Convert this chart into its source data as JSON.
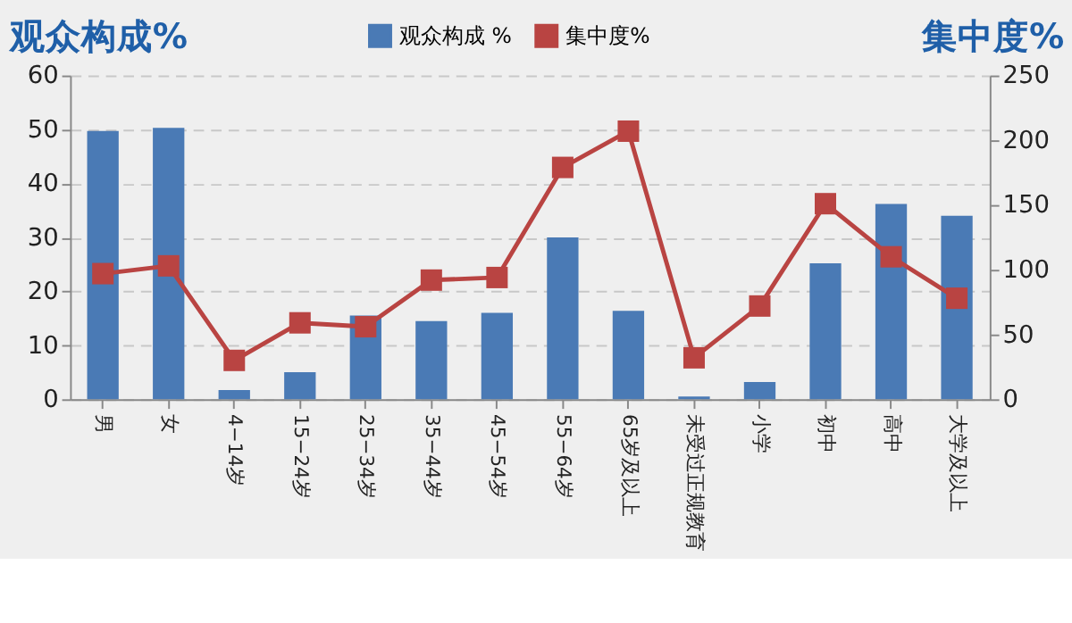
{
  "chart_data": {
    "type": "bar",
    "ylabel": "观众构成%",
    "y2label": "集中度%",
    "categories": [
      "男",
      "女",
      "4−14岁",
      "15−24岁",
      "25−34岁",
      "35−44岁",
      "45−54岁",
      "55−64岁",
      "65岁及以上",
      "未受过正规教育",
      "小学",
      "初中",
      "高中",
      "大学及以上"
    ],
    "series": [
      {
        "name": "观众构成 %",
        "color": "#4a7ab5",
        "values": [
          49.7,
          50.3,
          1.7,
          5,
          15.5,
          14.5,
          16,
          30,
          16.4,
          0.5,
          3.2,
          25.2,
          36.2,
          34
        ]
      },
      {
        "name": "集中度%",
        "type": "line",
        "axis": "y2",
        "color": "#b94442",
        "values": [
          97,
          103,
          30,
          59,
          56,
          92,
          94,
          179,
          207,
          32,
          72,
          151,
          110,
          78
        ]
      }
    ],
    "ylim": [
      0,
      60
    ],
    "yticks": [
      0,
      10,
      20,
      30,
      40,
      50,
      60
    ],
    "y2lim": [
      0,
      250
    ],
    "y2ticks": [
      0,
      50,
      100,
      150,
      200,
      250
    ],
    "grid": "y",
    "legend": "top",
    "marker": "square",
    "line_style": "solid"
  }
}
